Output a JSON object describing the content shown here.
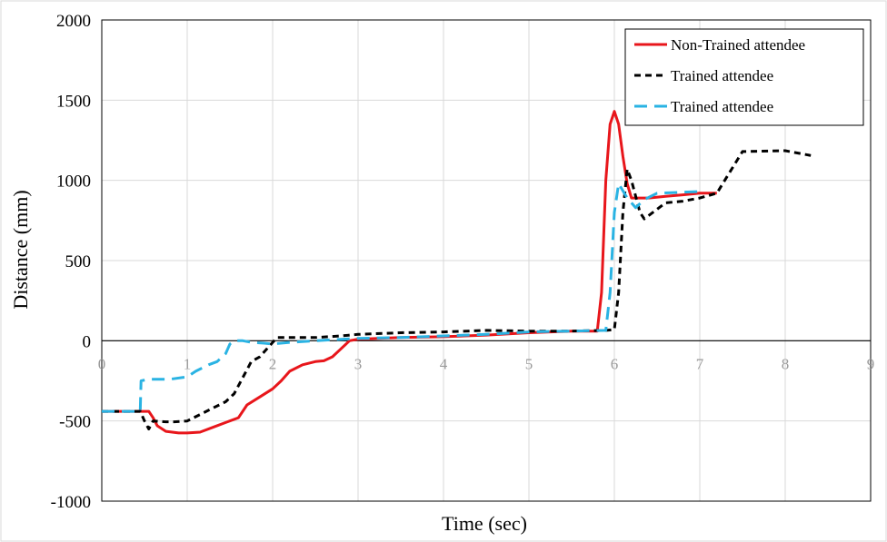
{
  "chart_data": {
    "type": "line",
    "title": "",
    "xlabel": "Time (sec)",
    "ylabel": "Distance (mm)",
    "xlim": [
      0,
      9
    ],
    "ylim": [
      -1000,
      2000
    ],
    "x_ticks": [
      0,
      1,
      2,
      3,
      4,
      5,
      6,
      7,
      8,
      9
    ],
    "y_ticks": [
      -1000,
      -500,
      0,
      500,
      1000,
      1500,
      2000
    ],
    "grid": true,
    "legend_position": "top-right",
    "series": [
      {
        "name": "Non-Trained attendee",
        "color": "#e8161b",
        "dash": "solid",
        "points": [
          [
            0.0,
            -440
          ],
          [
            0.5,
            -440
          ],
          [
            0.55,
            -440
          ],
          [
            0.6,
            -480
          ],
          [
            0.65,
            -530
          ],
          [
            0.75,
            -565
          ],
          [
            0.9,
            -575
          ],
          [
            1.0,
            -575
          ],
          [
            1.15,
            -570
          ],
          [
            1.3,
            -540
          ],
          [
            1.45,
            -510
          ],
          [
            1.6,
            -480
          ],
          [
            1.7,
            -400
          ],
          [
            1.85,
            -350
          ],
          [
            2.0,
            -300
          ],
          [
            2.1,
            -250
          ],
          [
            2.2,
            -190
          ],
          [
            2.35,
            -150
          ],
          [
            2.5,
            -130
          ],
          [
            2.6,
            -125
          ],
          [
            2.7,
            -100
          ],
          [
            2.8,
            -50
          ],
          [
            2.9,
            0
          ],
          [
            3.0,
            10
          ],
          [
            3.5,
            20
          ],
          [
            4.0,
            25
          ],
          [
            4.5,
            35
          ],
          [
            5.0,
            50
          ],
          [
            5.5,
            60
          ],
          [
            5.8,
            60
          ],
          [
            5.85,
            300
          ],
          [
            5.9,
            1000
          ],
          [
            5.95,
            1350
          ],
          [
            6.0,
            1430
          ],
          [
            6.05,
            1350
          ],
          [
            6.1,
            1150
          ],
          [
            6.15,
            980
          ],
          [
            6.2,
            890
          ],
          [
            6.4,
            890
          ],
          [
            6.6,
            900
          ],
          [
            6.8,
            910
          ],
          [
            7.0,
            920
          ],
          [
            7.2,
            920
          ]
        ]
      },
      {
        "name": "Trained attendee",
        "color": "#000000",
        "dash": "dashed",
        "points": [
          [
            0.0,
            -440
          ],
          [
            0.45,
            -440
          ],
          [
            0.5,
            -500
          ],
          [
            0.55,
            -550
          ],
          [
            0.6,
            -500
          ],
          [
            0.75,
            -505
          ],
          [
            0.85,
            -505
          ],
          [
            1.0,
            -500
          ],
          [
            1.15,
            -460
          ],
          [
            1.3,
            -420
          ],
          [
            1.45,
            -380
          ],
          [
            1.55,
            -330
          ],
          [
            1.65,
            -230
          ],
          [
            1.75,
            -130
          ],
          [
            1.85,
            -100
          ],
          [
            1.95,
            -40
          ],
          [
            2.05,
            20
          ],
          [
            2.5,
            20
          ],
          [
            2.8,
            30
          ],
          [
            3.0,
            40
          ],
          [
            3.5,
            50
          ],
          [
            4.0,
            55
          ],
          [
            4.5,
            65
          ],
          [
            5.0,
            60
          ],
          [
            5.5,
            60
          ],
          [
            5.9,
            65
          ],
          [
            6.0,
            70
          ],
          [
            6.05,
            300
          ],
          [
            6.1,
            800
          ],
          [
            6.15,
            1070
          ],
          [
            6.2,
            1000
          ],
          [
            6.3,
            800
          ],
          [
            6.35,
            760
          ],
          [
            6.5,
            820
          ],
          [
            6.6,
            860
          ],
          [
            6.8,
            870
          ],
          [
            7.0,
            890
          ],
          [
            7.2,
            920
          ],
          [
            7.35,
            1050
          ],
          [
            7.5,
            1180
          ],
          [
            8.0,
            1185
          ],
          [
            8.3,
            1155
          ]
        ]
      },
      {
        "name": "Trained attendee",
        "color": "#2ab3e3",
        "dash": "dashed",
        "points": [
          [
            0.0,
            -440
          ],
          [
            0.45,
            -440
          ],
          [
            0.46,
            -250
          ],
          [
            0.55,
            -240
          ],
          [
            0.8,
            -240
          ],
          [
            1.0,
            -225
          ],
          [
            1.1,
            -190
          ],
          [
            1.25,
            -150
          ],
          [
            1.35,
            -130
          ],
          [
            1.45,
            -80
          ],
          [
            1.5,
            -20
          ],
          [
            1.55,
            0
          ],
          [
            1.65,
            0
          ],
          [
            1.75,
            -10
          ],
          [
            1.9,
            -15
          ],
          [
            2.0,
            -20
          ],
          [
            2.2,
            -10
          ],
          [
            2.5,
            0
          ],
          [
            3.0,
            15
          ],
          [
            3.5,
            20
          ],
          [
            4.0,
            30
          ],
          [
            4.5,
            40
          ],
          [
            5.0,
            55
          ],
          [
            5.5,
            60
          ],
          [
            5.9,
            65
          ],
          [
            5.95,
            300
          ],
          [
            6.0,
            800
          ],
          [
            6.05,
            980
          ],
          [
            6.15,
            890
          ],
          [
            6.25,
            830
          ],
          [
            6.35,
            880
          ],
          [
            6.5,
            920
          ],
          [
            7.0,
            930
          ]
        ]
      }
    ]
  }
}
